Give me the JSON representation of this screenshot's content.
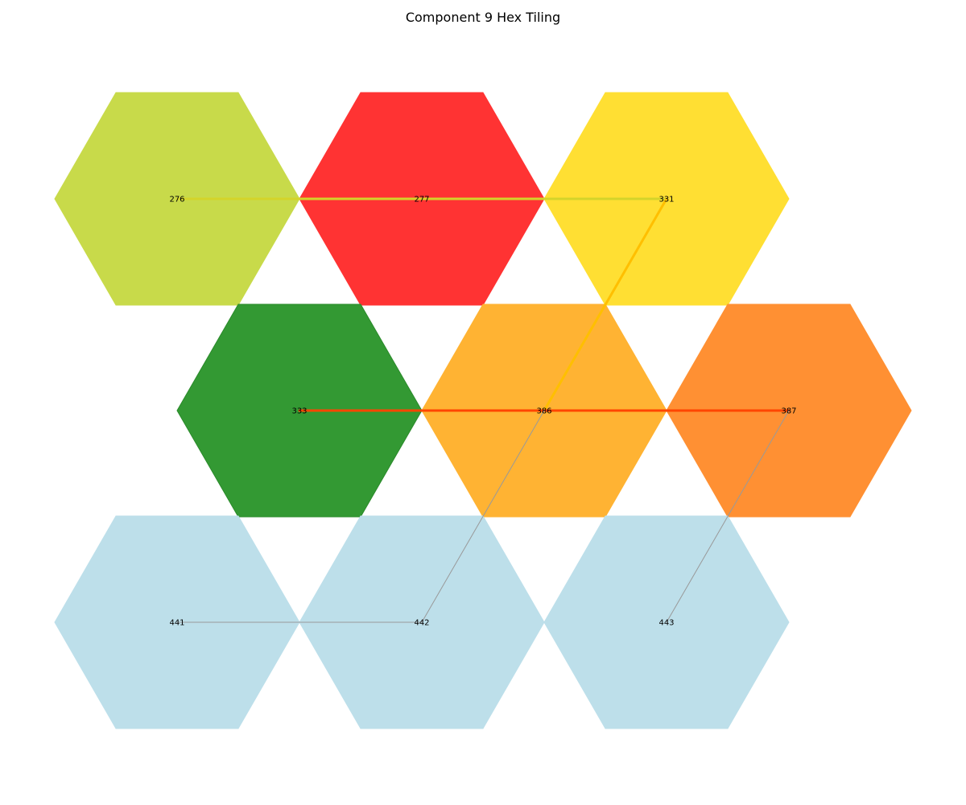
{
  "title": "Component 9 Hex Tiling",
  "cells": [
    {
      "id": "276",
      "color": "#c8da4a",
      "edge_color": "#c8da4a"
    },
    {
      "id": "277",
      "color": "#ff3333",
      "edge_color": "#ff3333"
    },
    {
      "id": "331",
      "color": "#ffdf33",
      "edge_color": "#ffdf33"
    },
    {
      "id": "333",
      "color": "#339933",
      "edge_color": "#2a8a2a"
    },
    {
      "id": "386",
      "color": "#ffb333",
      "edge_color": "#ffb333"
    },
    {
      "id": "387",
      "color": "#ff9033",
      "edge_color": "#ff9033"
    },
    {
      "id": "441",
      "color": "#bddfea",
      "edge_color": "#bddfea"
    },
    {
      "id": "442",
      "color": "#bddfea",
      "edge_color": "#bddfea"
    },
    {
      "id": "443",
      "color": "#bddfea",
      "edge_color": "#bddfea"
    }
  ],
  "links": [
    {
      "from": "276",
      "to": "277",
      "color": "#d4d42a",
      "weight": "heavy"
    },
    {
      "from": "277",
      "to": "331",
      "color": "#d4d42a",
      "weight": "heavy"
    },
    {
      "from": "331",
      "to": "386",
      "color": "#ffbf00",
      "weight": "heavy"
    },
    {
      "from": "333",
      "to": "386",
      "color": "#ff4500",
      "weight": "heavy"
    },
    {
      "from": "386",
      "to": "387",
      "color": "#ff4500",
      "weight": "heavy"
    },
    {
      "from": "441",
      "to": "442",
      "color": "#999999",
      "weight": "light"
    },
    {
      "from": "386",
      "to": "442",
      "color": "#999999",
      "weight": "light"
    },
    {
      "from": "387",
      "to": "443",
      "color": "#999999",
      "weight": "light"
    }
  ]
}
